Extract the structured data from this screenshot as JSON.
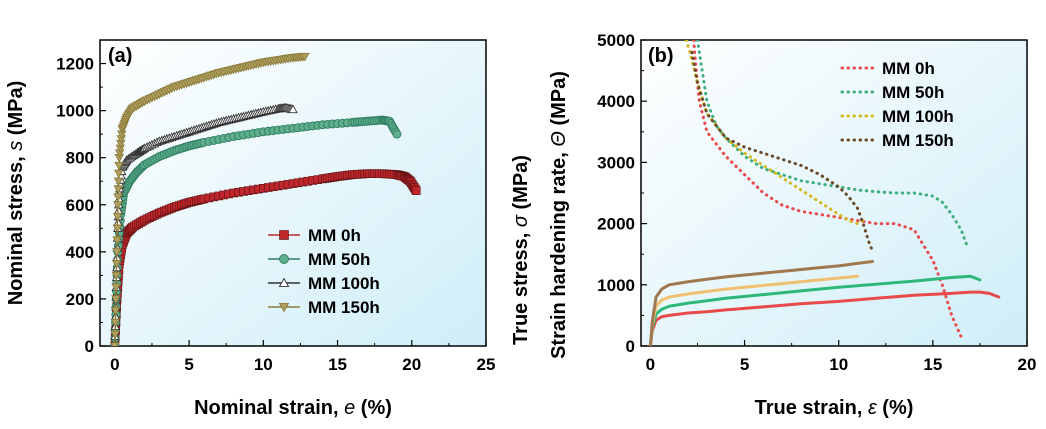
{
  "chart_data": [
    {
      "panel_label": "(a)",
      "type": "line",
      "xlabel": "Nominal strain, e (%)",
      "xlabel_parts": [
        "Nominal strain, ",
        "e",
        " (%)"
      ],
      "ylabel": "Nominal stress, s (MPa)",
      "ylabel_parts": [
        "Nominal stress, ",
        "s",
        " (MPa)"
      ],
      "xlim": [
        -1,
        25
      ],
      "ylim": [
        0,
        1300
      ],
      "xticks": [
        0,
        5,
        10,
        15,
        20,
        25
      ],
      "yticks": [
        0,
        200,
        400,
        600,
        800,
        1000,
        1200
      ],
      "grid": false,
      "background": "gradient light cyan",
      "legend_position": "center-right",
      "series": [
        {
          "name": "MM 0h",
          "color": "#c0272d",
          "marker": "square",
          "x": [
            0,
            0.15,
            0.3,
            0.5,
            0.8,
            1.2,
            2,
            3,
            4,
            5,
            6,
            8,
            10,
            12,
            14,
            15,
            16,
            17,
            18,
            19,
            19.5,
            19.9,
            20.3
          ],
          "y": [
            0,
            200,
            350,
            430,
            480,
            505,
            535,
            565,
            590,
            610,
            625,
            650,
            670,
            690,
            710,
            720,
            728,
            732,
            732,
            728,
            720,
            700,
            660
          ]
        },
        {
          "name": "MM 50h",
          "color": "#2f7d5f",
          "marker": "circle",
          "x": [
            0,
            0.1,
            0.2,
            0.4,
            0.6,
            1,
            1.5,
            2,
            3,
            4,
            5,
            6,
            8,
            10,
            12,
            14,
            16,
            17,
            18,
            18.5,
            19
          ],
          "y": [
            0,
            200,
            400,
            560,
            650,
            700,
            740,
            770,
            805,
            830,
            850,
            865,
            890,
            910,
            925,
            940,
            950,
            955,
            960,
            955,
            900
          ]
        },
        {
          "name": "MM 100h",
          "color": "#333333",
          "marker": "triangle-up",
          "x": [
            0,
            0.1,
            0.2,
            0.3,
            0.5,
            0.8,
            1.5,
            2,
            3,
            4,
            5,
            6,
            7,
            8,
            9,
            10,
            11,
            11.5,
            12
          ],
          "y": [
            0,
            250,
            500,
            650,
            760,
            790,
            820,
            840,
            870,
            890,
            910,
            930,
            950,
            965,
            980,
            995,
            1008,
            1012,
            1005
          ]
        },
        {
          "name": "MM 150h",
          "color": "#8a7a3a",
          "marker": "triangle-down",
          "x": [
            0,
            0.1,
            0.2,
            0.3,
            0.5,
            0.8,
            1.2,
            2,
            3,
            4,
            5,
            6,
            7,
            8,
            9,
            10,
            11,
            12,
            12.8
          ],
          "y": [
            0,
            300,
            600,
            800,
            920,
            970,
            1010,
            1040,
            1070,
            1100,
            1120,
            1140,
            1160,
            1175,
            1190,
            1205,
            1215,
            1225,
            1230
          ]
        }
      ]
    },
    {
      "panel_label": "(b)",
      "type": "line",
      "xlabel": "True strain, ε (%)",
      "xlabel_parts": [
        "True strain, ",
        "ε",
        " (%)"
      ],
      "ylabel_line1": "Strain hardening rate, Θ (MPa)",
      "ylabel_line1_parts": [
        "Strain hardening rate, ",
        "Θ",
        " (MPa)"
      ],
      "ylabel_line2": "True stress, σ (MPa)",
      "ylabel_line2_parts": [
        "True stress, ",
        "σ",
        " (MPa)"
      ],
      "xlim": [
        -0.5,
        20
      ],
      "ylim": [
        0,
        5000
      ],
      "xticks": [
        0,
        5,
        10,
        15,
        20
      ],
      "yticks": [
        0,
        1000,
        2000,
        3000,
        4000,
        5000
      ],
      "grid": false,
      "background": "gradient light cyan",
      "legend_position": "top-right",
      "series": [
        {
          "name": "MM 0h",
          "color": "#e84a4a",
          "style": "dotted",
          "kind": "hardening",
          "x": [
            2.3,
            2.4,
            2.6,
            3,
            3.5,
            4,
            5,
            6,
            7,
            8,
            9,
            10,
            11,
            12,
            13,
            14,
            15,
            15.5,
            16,
            16.5
          ],
          "y": [
            5000,
            4600,
            4000,
            3500,
            3300,
            3100,
            2800,
            2500,
            2300,
            2200,
            2150,
            2100,
            2050,
            2000,
            2000,
            1900,
            1400,
            1000,
            500,
            150
          ]
        },
        {
          "name": "MM 50h",
          "color": "#3fae7e",
          "style": "dotted",
          "kind": "hardening",
          "x": [
            2.5,
            2.7,
            3,
            3.5,
            4,
            5,
            6,
            7,
            8,
            9,
            10,
            11,
            12,
            13,
            14,
            15,
            15.5,
            16,
            16.5,
            16.8
          ],
          "y": [
            5000,
            4600,
            4000,
            3600,
            3400,
            3100,
            2900,
            2800,
            2700,
            2650,
            2600,
            2550,
            2520,
            2500,
            2500,
            2450,
            2350,
            2150,
            1900,
            1650
          ]
        },
        {
          "name": "MM 100h",
          "color": "#d4b820",
          "style": "dotted",
          "kind": "hardening",
          "x": [
            1.9,
            2.1,
            2.5,
            3,
            4,
            5,
            6,
            7,
            8,
            9,
            9.5,
            10,
            10.5,
            11,
            11.3
          ],
          "y": [
            5000,
            4800,
            4300,
            3800,
            3400,
            3150,
            2950,
            2750,
            2550,
            2350,
            2250,
            2150,
            2050,
            2000,
            2050
          ]
        },
        {
          "name": "MM 150h",
          "color": "#6b4a2a",
          "style": "dotted",
          "kind": "hardening",
          "x": [
            2.2,
            2.5,
            3,
            3.5,
            4,
            5,
            6,
            7,
            8,
            9,
            9.5,
            10,
            10.5,
            11,
            11.3,
            11.6,
            11.8
          ],
          "y": [
            4800,
            4300,
            3800,
            3600,
            3400,
            3250,
            3150,
            3050,
            2950,
            2800,
            2700,
            2600,
            2450,
            2250,
            2000,
            1700,
            1550
          ]
        },
        {
          "kind": "stress",
          "color": "#e84a4a",
          "x": [
            0,
            0.1,
            0.3,
            0.6,
            1,
            2,
            3,
            4,
            6,
            8,
            10,
            12,
            14,
            16,
            17,
            17.5,
            18,
            18.5
          ],
          "y": [
            0,
            250,
            420,
            480,
            500,
            540,
            560,
            590,
            640,
            690,
            730,
            780,
            830,
            860,
            880,
            880,
            860,
            800
          ]
        },
        {
          "kind": "stress",
          "color": "#2db87a",
          "x": [
            0,
            0.1,
            0.3,
            0.6,
            1,
            2,
            3,
            4,
            6,
            8,
            10,
            12,
            14,
            16,
            17,
            17.5
          ],
          "y": [
            0,
            300,
            520,
            600,
            650,
            700,
            740,
            780,
            840,
            900,
            960,
            1010,
            1060,
            1120,
            1140,
            1080
          ]
        },
        {
          "kind": "stress",
          "color": "#f0c070",
          "x": [
            0,
            0.1,
            0.3,
            0.6,
            1,
            2,
            3,
            4,
            5,
            6,
            7,
            8,
            9,
            10,
            11
          ],
          "y": [
            0,
            350,
            650,
            750,
            800,
            850,
            890,
            930,
            960,
            990,
            1020,
            1050,
            1080,
            1110,
            1140
          ]
        },
        {
          "kind": "stress",
          "color": "#a07850",
          "x": [
            0,
            0.1,
            0.3,
            0.6,
            1,
            2,
            3,
            4,
            5,
            6,
            7,
            8,
            9,
            10,
            11,
            11.8
          ],
          "y": [
            0,
            400,
            800,
            930,
            1000,
            1050,
            1090,
            1130,
            1160,
            1190,
            1220,
            1250,
            1280,
            1310,
            1350,
            1380
          ]
        }
      ]
    }
  ]
}
